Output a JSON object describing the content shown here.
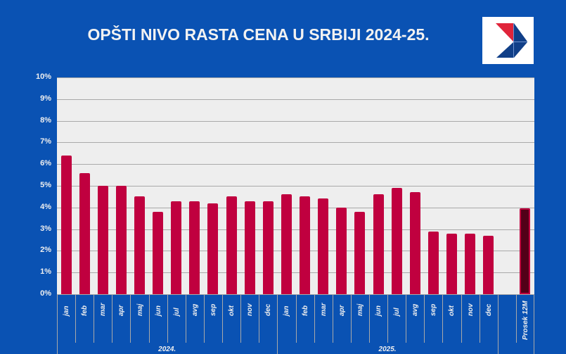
{
  "header": {
    "title": "OPŠTI NIVO RASTA CENA U SRBIJI 2024-25.",
    "logo": "chevron-logo-icon"
  },
  "colors": {
    "background": "#0a52b3",
    "plot_bg": "#eeeeee",
    "bar": "#c0003f",
    "avg_bar_inner": "#520018",
    "grid": "#a9a9a9"
  },
  "chart_data": {
    "type": "bar",
    "title": "OPŠTI NIVO RASTA CENA U SRBIJI 2024-25.",
    "xlabel": "",
    "ylabel": "",
    "ylim": [
      0,
      10
    ],
    "y_ticks": [
      "0%",
      "1%",
      "2%",
      "3%",
      "4%",
      "5%",
      "6%",
      "7%",
      "8%",
      "9%",
      "10%"
    ],
    "grid": true,
    "legend": null,
    "groups": [
      "2024.",
      "2025."
    ],
    "categories": [
      "jan",
      "feb",
      "mar",
      "apr",
      "maj",
      "jun",
      "jul",
      "avg",
      "sep",
      "okt",
      "nov",
      "dec",
      "jan",
      "feb",
      "mar",
      "apr",
      "maj",
      "jun",
      "jul",
      "avg",
      "sep",
      "okt",
      "nov",
      "dec",
      "",
      "Prosek 12M"
    ],
    "values": [
      6.4,
      5.6,
      5.0,
      5.0,
      4.5,
      3.8,
      4.3,
      4.3,
      4.2,
      4.5,
      4.3,
      4.3,
      4.6,
      4.5,
      4.4,
      4.0,
      3.8,
      4.6,
      4.9,
      4.7,
      2.9,
      2.8,
      2.8,
      2.7,
      null,
      3.9
    ],
    "series": [
      {
        "name": "2024.",
        "categories": [
          "jan",
          "feb",
          "mar",
          "apr",
          "maj",
          "jun",
          "jul",
          "avg",
          "sep",
          "okt",
          "nov",
          "dec"
        ],
        "values": [
          6.4,
          5.6,
          5.0,
          5.0,
          4.5,
          3.8,
          4.3,
          4.3,
          4.2,
          4.5,
          4.3,
          4.3
        ]
      },
      {
        "name": "2025.",
        "categories": [
          "jan",
          "feb",
          "mar",
          "apr",
          "maj",
          "jun",
          "jul",
          "avg",
          "sep",
          "okt",
          "nov",
          "dec"
        ],
        "values": [
          4.6,
          4.5,
          4.4,
          4.0,
          3.8,
          4.6,
          4.9,
          4.7,
          2.9,
          2.8,
          2.8,
          2.7
        ]
      },
      {
        "name": "Prosek 12M",
        "values": [
          3.9
        ]
      }
    ]
  }
}
